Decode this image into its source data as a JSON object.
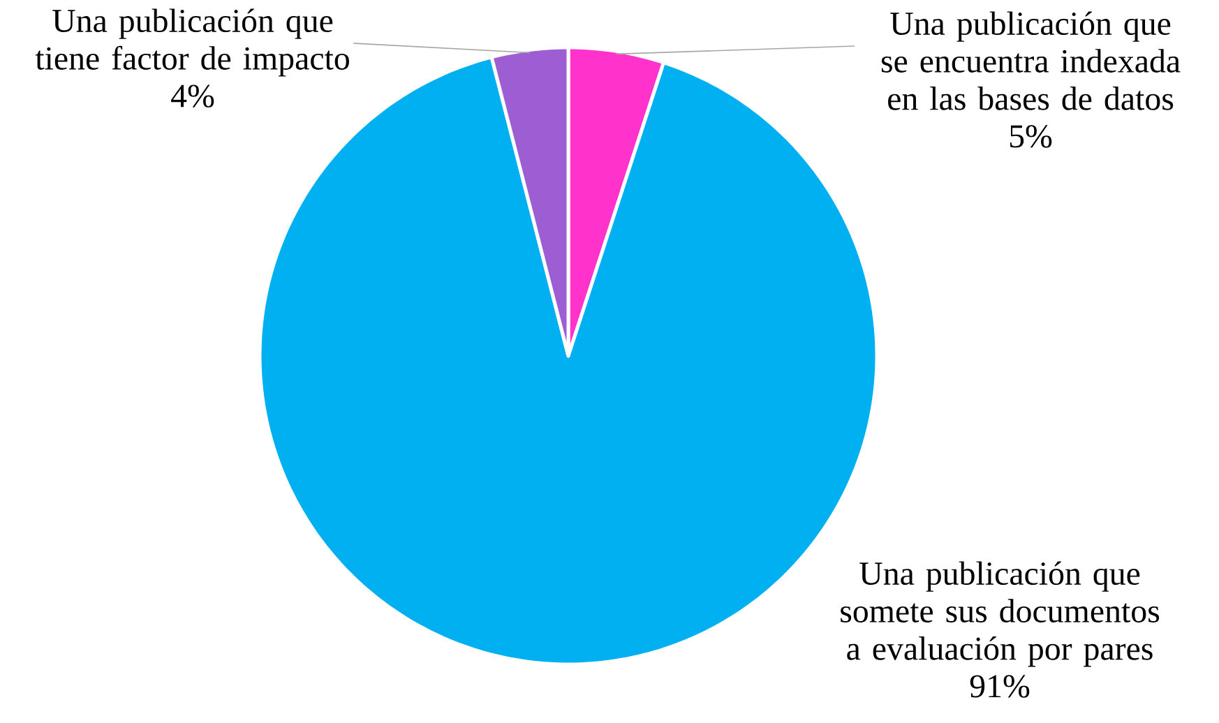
{
  "chart_data": {
    "type": "pie",
    "categories": [
      "Una publicación que se encuentra indexada en las bases de datos",
      "Una publicación que somete sus documentos a evaluación por pares",
      "Una publicación que tiene factor de impacto"
    ],
    "values": [
      5,
      91,
      4
    ],
    "value_labels": [
      "5%",
      "91%",
      "4%"
    ],
    "colors": [
      "#ff33cc",
      "#00b0f0",
      "#9e5ed3"
    ],
    "legend": false
  }
}
